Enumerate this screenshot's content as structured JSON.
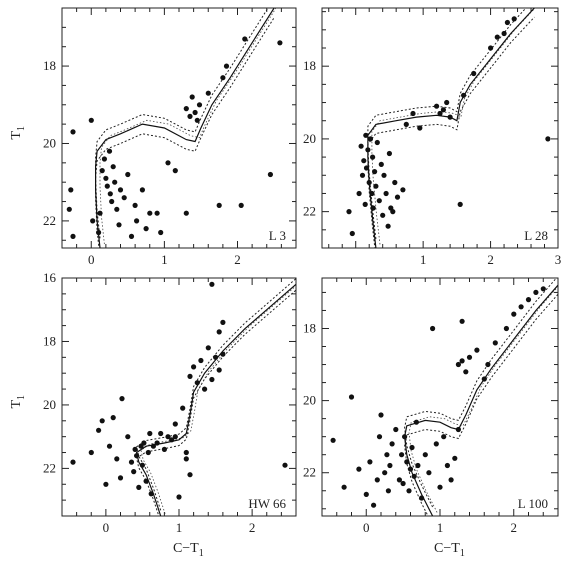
{
  "chart_data": [
    {
      "type": "scatter",
      "label": "L 3",
      "xlim": [
        -0.4,
        2.8
      ],
      "ylim": [
        22.7,
        16.5
      ],
      "xticks": [
        0,
        1,
        2
      ],
      "yticks": [
        18,
        20,
        22
      ],
      "ylabel": "T",
      "ylabel_sub": "1",
      "xlabel": "",
      "show_xtick_labels": true,
      "show_ytick_labels": true,
      "isochrone": [
        [
          0.12,
          22.7
        ],
        [
          0.08,
          22.0
        ],
        [
          0.06,
          21.2
        ],
        [
          0.06,
          20.6
        ],
        [
          0.08,
          20.2
        ],
        [
          0.2,
          19.9
        ],
        [
          0.4,
          19.75
        ],
        [
          0.7,
          19.5
        ],
        [
          1.0,
          19.6
        ],
        [
          1.3,
          19.9
        ],
        [
          1.42,
          19.95
        ],
        [
          1.5,
          19.6
        ],
        [
          1.65,
          19.0
        ],
        [
          1.9,
          18.3
        ],
        [
          2.2,
          17.4
        ],
        [
          2.5,
          16.5
        ]
      ],
      "band_offset": 0.25,
      "points": [
        [
          -0.25,
          19.7
        ],
        [
          -0.28,
          21.2
        ],
        [
          -0.3,
          21.7
        ],
        [
          -0.25,
          22.4
        ],
        [
          0.0,
          19.4
        ],
        [
          0.02,
          22.0
        ],
        [
          0.1,
          22.3
        ],
        [
          0.12,
          21.8
        ],
        [
          0.15,
          20.7
        ],
        [
          0.18,
          20.4
        ],
        [
          0.2,
          20.9
        ],
        [
          0.22,
          21.1
        ],
        [
          0.25,
          20.2
        ],
        [
          0.26,
          21.3
        ],
        [
          0.28,
          21.5
        ],
        [
          0.3,
          20.6
        ],
        [
          0.32,
          21.0
        ],
        [
          0.35,
          21.7
        ],
        [
          0.38,
          22.1
        ],
        [
          0.4,
          21.2
        ],
        [
          0.45,
          21.4
        ],
        [
          0.5,
          20.8
        ],
        [
          0.55,
          22.4
        ],
        [
          0.6,
          21.6
        ],
        [
          0.62,
          22.0
        ],
        [
          0.7,
          21.2
        ],
        [
          0.75,
          22.2
        ],
        [
          0.8,
          21.8
        ],
        [
          0.9,
          21.8
        ],
        [
          0.95,
          22.3
        ],
        [
          1.05,
          20.5
        ],
        [
          1.15,
          20.7
        ],
        [
          1.3,
          21.8
        ],
        [
          1.3,
          19.1
        ],
        [
          1.35,
          19.3
        ],
        [
          1.38,
          18.8
        ],
        [
          1.42,
          19.2
        ],
        [
          1.45,
          19.4
        ],
        [
          1.48,
          19.0
        ],
        [
          1.6,
          18.7
        ],
        [
          1.8,
          18.3
        ],
        [
          1.85,
          18.0
        ],
        [
          1.75,
          21.6
        ],
        [
          2.05,
          21.6
        ],
        [
          2.1,
          17.3
        ],
        [
          2.45,
          20.8
        ],
        [
          2.58,
          17.4
        ]
      ]
    },
    {
      "type": "scatter",
      "label": "L 28",
      "xlim": [
        -0.5,
        3.0
      ],
      "ylim": [
        23.0,
        16.4
      ],
      "xticks": [
        1,
        2,
        3
      ],
      "yticks": [
        18,
        20,
        22
      ],
      "xlabel": "",
      "ylabel": "",
      "show_xtick_labels": true,
      "show_ytick_labels": true,
      "isochrone": [
        [
          0.3,
          23.0
        ],
        [
          0.25,
          22.2
        ],
        [
          0.2,
          21.2
        ],
        [
          0.18,
          20.5
        ],
        [
          0.18,
          19.9
        ],
        [
          0.3,
          19.6
        ],
        [
          0.6,
          19.5
        ],
        [
          0.9,
          19.4
        ],
        [
          1.2,
          19.35
        ],
        [
          1.4,
          19.4
        ],
        [
          1.5,
          19.5
        ],
        [
          1.55,
          19.0
        ],
        [
          1.7,
          18.5
        ],
        [
          2.0,
          17.8
        ],
        [
          2.3,
          17.1
        ],
        [
          2.65,
          16.4
        ]
      ],
      "band_offset": 0.25,
      "points": [
        [
          -0.1,
          22.0
        ],
        [
          -0.05,
          22.6
        ],
        [
          0.05,
          21.5
        ],
        [
          0.08,
          20.2
        ],
        [
          0.1,
          21.0
        ],
        [
          0.12,
          20.6
        ],
        [
          0.14,
          21.8
        ],
        [
          0.15,
          19.9
        ],
        [
          0.16,
          20.8
        ],
        [
          0.18,
          20.3
        ],
        [
          0.2,
          21.2
        ],
        [
          0.22,
          20.0
        ],
        [
          0.24,
          21.5
        ],
        [
          0.25,
          20.5
        ],
        [
          0.26,
          21.9
        ],
        [
          0.28,
          20.9
        ],
        [
          0.3,
          21.3
        ],
        [
          0.32,
          20.1
        ],
        [
          0.35,
          21.7
        ],
        [
          0.38,
          20.7
        ],
        [
          0.4,
          22.1
        ],
        [
          0.42,
          21.0
        ],
        [
          0.45,
          21.5
        ],
        [
          0.48,
          22.4
        ],
        [
          0.5,
          20.4
        ],
        [
          0.52,
          21.9
        ],
        [
          0.55,
          22.0
        ],
        [
          0.58,
          21.2
        ],
        [
          0.62,
          21.6
        ],
        [
          0.7,
          21.4
        ],
        [
          0.75,
          19.6
        ],
        [
          0.85,
          19.3
        ],
        [
          0.95,
          19.7
        ],
        [
          1.2,
          19.1
        ],
        [
          1.25,
          19.3
        ],
        [
          1.3,
          19.2
        ],
        [
          1.35,
          19.0
        ],
        [
          1.4,
          19.4
        ],
        [
          1.55,
          21.8
        ],
        [
          1.6,
          18.8
        ],
        [
          1.75,
          18.2
        ],
        [
          2.0,
          17.5
        ],
        [
          2.1,
          17.2
        ],
        [
          2.2,
          17.1
        ],
        [
          2.25,
          16.8
        ],
        [
          2.35,
          16.7
        ],
        [
          2.85,
          20.0
        ]
      ]
    },
    {
      "type": "scatter",
      "label": "HW 66",
      "xlim": [
        -0.6,
        2.6
      ],
      "ylim": [
        23.5,
        16.0
      ],
      "xticks": [
        0,
        1,
        2
      ],
      "yticks": [
        16,
        18,
        20,
        22
      ],
      "xlabel": "C−T",
      "xlabel_sub": "1",
      "ylabel": "T",
      "ylabel_sub": "1",
      "show_xtick_labels": true,
      "show_ytick_labels": true,
      "isochrone": [
        [
          0.75,
          23.5
        ],
        [
          0.65,
          22.8
        ],
        [
          0.55,
          22.2
        ],
        [
          0.45,
          21.8
        ],
        [
          0.42,
          21.5
        ],
        [
          0.55,
          21.3
        ],
        [
          0.8,
          21.2
        ],
        [
          1.0,
          21.1
        ],
        [
          1.1,
          20.9
        ],
        [
          1.15,
          20.3
        ],
        [
          1.2,
          19.6
        ],
        [
          1.35,
          19.0
        ],
        [
          1.6,
          18.3
        ],
        [
          1.9,
          17.6
        ],
        [
          2.2,
          17.0
        ],
        [
          2.6,
          16.2
        ]
      ],
      "band_offset": 0.18,
      "points": [
        [
          -0.45,
          21.8
        ],
        [
          -0.2,
          21.5
        ],
        [
          -0.1,
          20.8
        ],
        [
          -0.05,
          20.5
        ],
        [
          0.0,
          22.5
        ],
        [
          0.05,
          21.3
        ],
        [
          0.1,
          20.4
        ],
        [
          0.15,
          21.7
        ],
        [
          0.2,
          22.3
        ],
        [
          0.22,
          19.8
        ],
        [
          0.3,
          21.0
        ],
        [
          0.35,
          21.8
        ],
        [
          0.38,
          22.1
        ],
        [
          0.4,
          21.4
        ],
        [
          0.42,
          21.6
        ],
        [
          0.45,
          22.6
        ],
        [
          0.48,
          21.3
        ],
        [
          0.5,
          21.9
        ],
        [
          0.52,
          21.2
        ],
        [
          0.55,
          22.4
        ],
        [
          0.58,
          21.5
        ],
        [
          0.6,
          20.9
        ],
        [
          0.62,
          22.8
        ],
        [
          0.65,
          21.3
        ],
        [
          0.7,
          21.2
        ],
        [
          0.75,
          20.9
        ],
        [
          0.8,
          21.4
        ],
        [
          0.85,
          21.0
        ],
        [
          0.9,
          21.1
        ],
        [
          0.95,
          20.6
        ],
        [
          1.0,
          22.9
        ],
        [
          1.05,
          20.1
        ],
        [
          1.1,
          21.7
        ],
        [
          1.15,
          22.2
        ],
        [
          1.15,
          19.1
        ],
        [
          1.2,
          18.8
        ],
        [
          1.25,
          19.3
        ],
        [
          1.3,
          18.6
        ],
        [
          1.35,
          19.5
        ],
        [
          1.4,
          18.2
        ],
        [
          1.45,
          19.2
        ],
        [
          1.5,
          18.5
        ],
        [
          1.55,
          18.9
        ],
        [
          1.6,
          18.4
        ],
        [
          1.45,
          16.2
        ],
        [
          1.55,
          17.7
        ],
        [
          1.6,
          17.4
        ],
        [
          2.45,
          21.9
        ],
        [
          1.1,
          21.5
        ],
        [
          0.95,
          21.0
        ]
      ]
    },
    {
      "type": "scatter",
      "label": "L 100",
      "xlim": [
        -0.6,
        2.6
      ],
      "ylim": [
        23.2,
        16.6
      ],
      "xticks": [
        0,
        1,
        2
      ],
      "yticks": [
        18,
        20,
        22
      ],
      "xlabel": "C−T",
      "xlabel_sub": "1",
      "ylabel": "",
      "show_xtick_labels": true,
      "show_ytick_labels": true,
      "isochrone": [
        [
          0.9,
          23.2
        ],
        [
          0.75,
          22.6
        ],
        [
          0.62,
          22.0
        ],
        [
          0.55,
          21.5
        ],
        [
          0.52,
          21.0
        ],
        [
          0.55,
          20.7
        ],
        [
          0.8,
          20.55
        ],
        [
          1.0,
          20.6
        ],
        [
          1.15,
          20.75
        ],
        [
          1.25,
          20.8
        ],
        [
          1.35,
          20.4
        ],
        [
          1.5,
          19.7
        ],
        [
          1.7,
          19.1
        ],
        [
          2.0,
          18.3
        ],
        [
          2.3,
          17.5
        ],
        [
          2.6,
          16.8
        ]
      ],
      "band_offset": 0.25,
      "points": [
        [
          -0.45,
          21.1
        ],
        [
          -0.3,
          22.4
        ],
        [
          -0.2,
          19.9
        ],
        [
          -0.1,
          21.9
        ],
        [
          0.0,
          22.6
        ],
        [
          0.05,
          21.7
        ],
        [
          0.1,
          22.9
        ],
        [
          0.15,
          22.2
        ],
        [
          0.18,
          21.0
        ],
        [
          0.2,
          20.4
        ],
        [
          0.25,
          22.0
        ],
        [
          0.28,
          21.5
        ],
        [
          0.3,
          22.5
        ],
        [
          0.32,
          21.8
        ],
        [
          0.35,
          21.2
        ],
        [
          0.4,
          20.8
        ],
        [
          0.45,
          22.2
        ],
        [
          0.48,
          21.5
        ],
        [
          0.5,
          22.3
        ],
        [
          0.52,
          21.0
        ],
        [
          0.55,
          21.7
        ],
        [
          0.58,
          22.5
        ],
        [
          0.6,
          21.9
        ],
        [
          0.62,
          21.3
        ],
        [
          0.65,
          22.1
        ],
        [
          0.68,
          20.6
        ],
        [
          0.7,
          21.8
        ],
        [
          0.75,
          22.7
        ],
        [
          0.8,
          21.5
        ],
        [
          0.85,
          22.0
        ],
        [
          0.9,
          18.0
        ],
        [
          0.95,
          21.2
        ],
        [
          1.0,
          22.4
        ],
        [
          1.05,
          21.0
        ],
        [
          1.1,
          21.8
        ],
        [
          1.15,
          22.2
        ],
        [
          1.2,
          21.6
        ],
        [
          1.25,
          20.8
        ],
        [
          1.3,
          17.8
        ],
        [
          1.25,
          19.0
        ],
        [
          1.3,
          18.9
        ],
        [
          1.35,
          19.2
        ],
        [
          1.4,
          18.8
        ],
        [
          1.5,
          18.6
        ],
        [
          1.6,
          19.4
        ],
        [
          1.65,
          19.0
        ],
        [
          1.75,
          18.4
        ],
        [
          1.9,
          18.0
        ],
        [
          2.0,
          17.6
        ],
        [
          2.1,
          17.4
        ],
        [
          2.2,
          17.2
        ],
        [
          2.3,
          17.0
        ],
        [
          2.4,
          16.9
        ]
      ]
    }
  ]
}
